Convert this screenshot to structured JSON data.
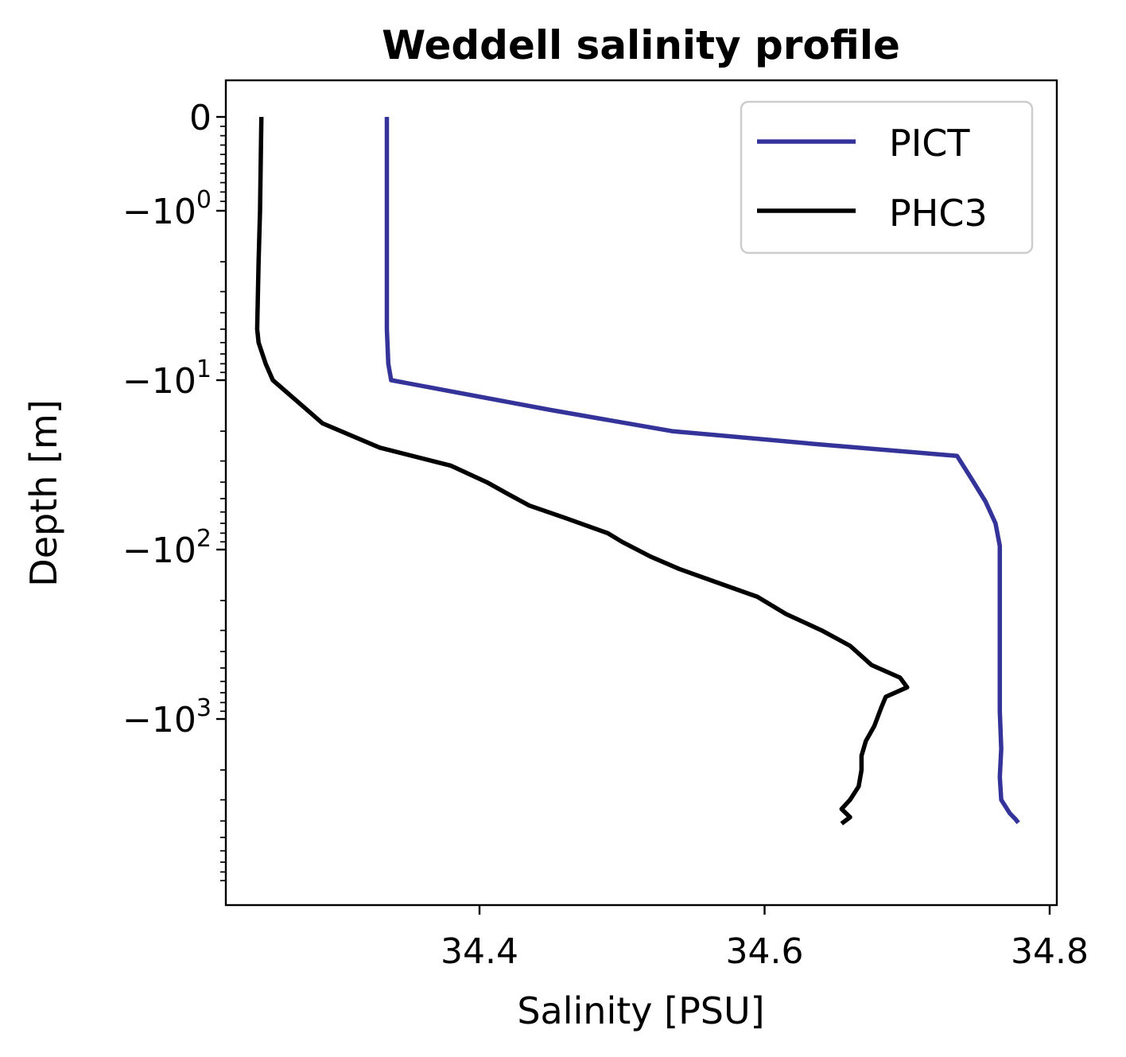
{
  "chart_data": {
    "type": "line",
    "title": "Weddell salinity profile",
    "xlabel": "Salinity [PSU]",
    "ylabel": "Depth [m]",
    "yscale": "symlog",
    "xlim": [
      34.22,
      34.805
    ],
    "x_ticks": [
      {
        "value": 34.4,
        "label": "34.4"
      },
      {
        "value": 34.6,
        "label": "34.6"
      },
      {
        "value": 34.8,
        "label": "34.8"
      }
    ],
    "y_ticks": [
      {
        "value": 0,
        "base": "0",
        "exp": ""
      },
      {
        "value": -1,
        "base": "−10",
        "exp": "0"
      },
      {
        "value": -10,
        "base": "−10",
        "exp": "1"
      },
      {
        "value": -100,
        "base": "−10",
        "exp": "2"
      },
      {
        "value": -1000,
        "base": "−10",
        "exp": "3"
      }
    ],
    "legend": {
      "position": "top-right"
    },
    "series": [
      {
        "name": "PICT",
        "color": "#333399",
        "points": [
          [
            34.335,
            0
          ],
          [
            34.335,
            -1
          ],
          [
            34.335,
            -2
          ],
          [
            34.335,
            -5
          ],
          [
            34.336,
            -8
          ],
          [
            34.338,
            -10
          ],
          [
            34.45,
            -15
          ],
          [
            34.535,
            -20
          ],
          [
            34.64,
            -24
          ],
          [
            34.735,
            -28
          ],
          [
            34.745,
            -38
          ],
          [
            34.755,
            -52
          ],
          [
            34.762,
            -70
          ],
          [
            34.765,
            -95
          ],
          [
            34.765,
            -200
          ],
          [
            34.765,
            -500
          ],
          [
            34.765,
            -900
          ],
          [
            34.766,
            -1500
          ],
          [
            34.765,
            -2200
          ],
          [
            34.766,
            -3000
          ],
          [
            34.772,
            -3600
          ],
          [
            34.776,
            -3900
          ],
          [
            34.778,
            -4100
          ]
        ]
      },
      {
        "name": "PHC3",
        "color": "#000000",
        "points": [
          [
            34.247,
            0
          ],
          [
            34.246,
            -1
          ],
          [
            34.245,
            -2
          ],
          [
            34.244,
            -5
          ],
          [
            34.245,
            -6
          ],
          [
            34.25,
            -8
          ],
          [
            34.255,
            -10
          ],
          [
            34.29,
            -18
          ],
          [
            34.33,
            -25
          ],
          [
            34.38,
            -32
          ],
          [
            34.405,
            -40
          ],
          [
            34.42,
            -47
          ],
          [
            34.435,
            -55
          ],
          [
            34.46,
            -65
          ],
          [
            34.49,
            -80
          ],
          [
            34.5,
            -90
          ],
          [
            34.52,
            -110
          ],
          [
            34.54,
            -130
          ],
          [
            34.57,
            -160
          ],
          [
            34.595,
            -190
          ],
          [
            34.615,
            -240
          ],
          [
            34.64,
            -300
          ],
          [
            34.66,
            -370
          ],
          [
            34.675,
            -480
          ],
          [
            34.695,
            -570
          ],
          [
            34.7,
            -650
          ],
          [
            34.685,
            -740
          ],
          [
            34.682,
            -850
          ],
          [
            34.677,
            -1100
          ],
          [
            34.671,
            -1350
          ],
          [
            34.668,
            -1650
          ],
          [
            34.668,
            -2000
          ],
          [
            34.666,
            -2500
          ],
          [
            34.66,
            -3000
          ],
          [
            34.654,
            -3400
          ],
          [
            34.66,
            -3800
          ],
          [
            34.654,
            -4150
          ]
        ]
      }
    ]
  }
}
